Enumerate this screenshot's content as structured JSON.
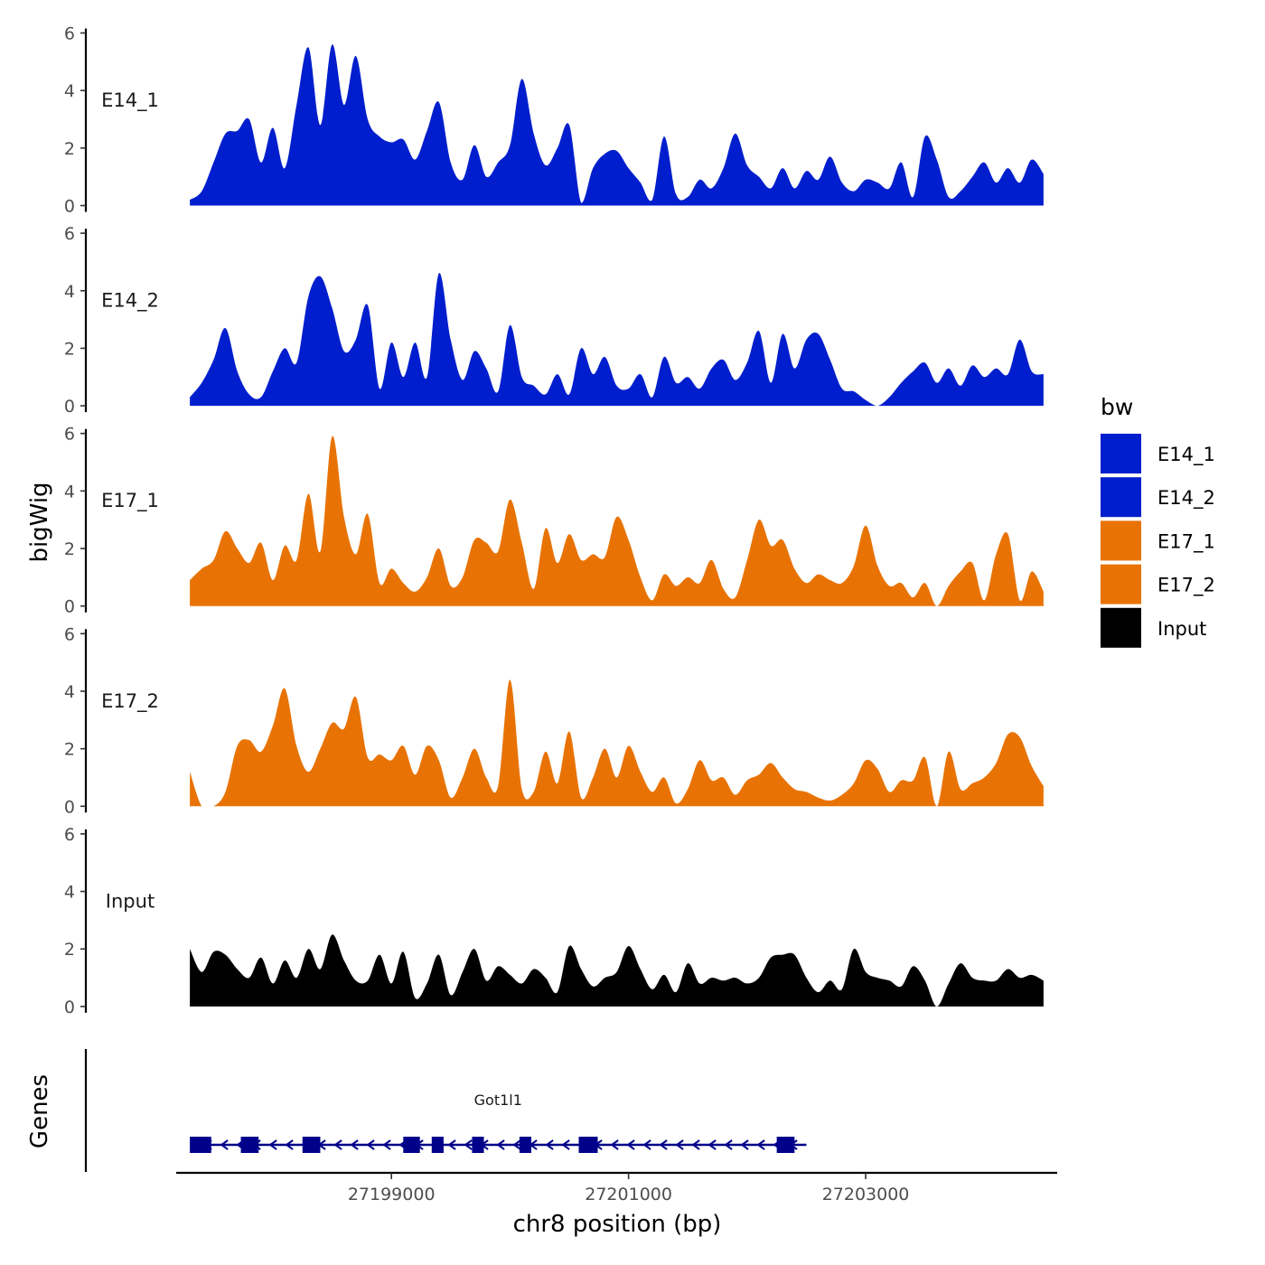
{
  "chart_data": {
    "type": "area",
    "title": "",
    "ylabel": "bigWig",
    "xlabel": "chr8 position (bp)",
    "genes_label": "Genes",
    "gene_name": "Got1l1",
    "xlim": [
      27197200,
      27204600
    ],
    "ylim": [
      0,
      6
    ],
    "y_ticks": [
      "0",
      "2",
      "4",
      "6"
    ],
    "x_ticks": [
      {
        "value": 27199000,
        "label": "27199000"
      },
      {
        "value": 27201000,
        "label": "27201000"
      },
      {
        "value": 27203000,
        "label": "27203000"
      }
    ],
    "legend": {
      "title": "bw",
      "entries": [
        "E14_1",
        "E14_2",
        "E17_1",
        "E17_2",
        "Input"
      ]
    },
    "colors": {
      "E14_1": "#001ECD",
      "E14_2": "#001ECD",
      "E17_1": "#E87304",
      "E17_2": "#E87304",
      "Input": "#000000",
      "gene": "#00008B"
    },
    "x": [
      27197300,
      27197400,
      27197500,
      27197600,
      27197700,
      27197800,
      27197900,
      27198000,
      27198100,
      27198200,
      27198300,
      27198400,
      27198500,
      27198600,
      27198700,
      27198800,
      27198900,
      27199000,
      27199100,
      27199200,
      27199300,
      27199400,
      27199500,
      27199600,
      27199700,
      27199800,
      27199900,
      27200000,
      27200100,
      27200200,
      27200300,
      27200400,
      27200500,
      27200600,
      27200700,
      27200800,
      27200900,
      27201000,
      27201100,
      27201200,
      27201300,
      27201400,
      27201500,
      27201600,
      27201700,
      27201800,
      27201900,
      27202000,
      27202100,
      27202200,
      27202300,
      27202400,
      27202500,
      27202600,
      27202700,
      27202800,
      27202900,
      27203000,
      27203100,
      27203200,
      27203300,
      27203400,
      27203500,
      27203600,
      27203700,
      27203800,
      27203900,
      27204000,
      27204100,
      27204200,
      27204300,
      27204400,
      27204500
    ],
    "series": [
      {
        "name": "E14_1",
        "values": [
          0.2,
          0.5,
          1.5,
          2.5,
          2.6,
          3.0,
          1.5,
          2.7,
          1.3,
          3.5,
          5.5,
          2.8,
          5.6,
          3.5,
          5.2,
          3.0,
          2.4,
          2.2,
          2.3,
          1.6,
          2.6,
          3.6,
          1.5,
          0.9,
          2.1,
          1.0,
          1.5,
          2.1,
          4.4,
          2.5,
          1.4,
          2.0,
          2.8,
          0.1,
          1.3,
          1.8,
          1.9,
          1.3,
          0.8,
          0.2,
          2.4,
          0.4,
          0.3,
          0.9,
          0.6,
          1.3,
          2.5,
          1.4,
          1.0,
          0.6,
          1.3,
          0.6,
          1.2,
          0.9,
          1.7,
          0.8,
          0.5,
          0.9,
          0.8,
          0.6,
          1.5,
          0.3,
          2.4,
          1.6,
          0.3,
          0.5,
          1.0,
          1.5,
          0.8,
          1.3,
          0.8,
          1.6,
          1.1
        ]
      },
      {
        "name": "E14_2",
        "values": [
          0.3,
          0.8,
          1.6,
          2.7,
          1.2,
          0.4,
          0.3,
          1.2,
          2.0,
          1.5,
          3.8,
          4.5,
          3.4,
          1.9,
          2.3,
          3.5,
          0.6,
          2.2,
          1.0,
          2.2,
          1.0,
          4.6,
          2.3,
          0.9,
          1.9,
          1.3,
          0.5,
          2.8,
          1.0,
          0.7,
          0.4,
          1.1,
          0.4,
          2.0,
          1.1,
          1.7,
          0.7,
          0.6,
          1.1,
          0.3,
          1.7,
          0.8,
          1.0,
          0.6,
          1.3,
          1.6,
          0.9,
          1.5,
          2.6,
          0.8,
          2.5,
          1.3,
          2.3,
          2.5,
          1.6,
          0.6,
          0.5,
          0.2,
          0.0,
          0.3,
          0.8,
          1.2,
          1.5,
          0.8,
          1.3,
          0.7,
          1.4,
          1.0,
          1.3,
          1.1,
          2.3,
          1.2,
          1.1
        ]
      },
      {
        "name": "E17_1",
        "values": [
          0.9,
          1.3,
          1.6,
          2.6,
          2.0,
          1.5,
          2.2,
          0.9,
          2.1,
          1.6,
          3.9,
          1.9,
          5.9,
          3.1,
          1.8,
          3.2,
          0.8,
          1.3,
          0.8,
          0.5,
          1.0,
          2.0,
          0.7,
          1.0,
          2.3,
          2.2,
          1.9,
          3.7,
          2.2,
          0.6,
          2.7,
          1.5,
          2.5,
          1.6,
          1.8,
          1.7,
          3.1,
          2.3,
          1.0,
          0.2,
          1.1,
          0.7,
          1.0,
          0.8,
          1.6,
          0.6,
          0.3,
          1.6,
          3.0,
          2.1,
          2.3,
          1.3,
          0.8,
          1.1,
          0.9,
          0.8,
          1.4,
          2.8,
          1.4,
          0.7,
          0.8,
          0.3,
          0.8,
          0.0,
          0.7,
          1.2,
          1.5,
          0.2,
          1.8,
          2.5,
          0.2,
          1.2,
          0.5
        ]
      },
      {
        "name": "E17_2",
        "values": [
          1.2,
          0.0,
          0.0,
          0.5,
          2.1,
          2.3,
          1.9,
          2.8,
          4.1,
          2.1,
          1.2,
          2.0,
          2.9,
          2.7,
          3.8,
          1.7,
          1.8,
          1.6,
          2.1,
          1.1,
          2.1,
          1.6,
          0.3,
          1.0,
          2.0,
          1.0,
          0.7,
          4.4,
          0.6,
          0.5,
          1.9,
          0.8,
          2.6,
          0.3,
          1.0,
          2.0,
          1.0,
          2.1,
          1.2,
          0.5,
          1.0,
          0.1,
          0.6,
          1.6,
          0.9,
          1.0,
          0.4,
          0.9,
          1.1,
          1.5,
          1.0,
          0.6,
          0.5,
          0.3,
          0.2,
          0.4,
          0.8,
          1.6,
          1.3,
          0.5,
          0.9,
          0.9,
          1.7,
          0.0,
          1.9,
          0.6,
          0.8,
          1.0,
          1.5,
          2.5,
          2.4,
          1.4,
          0.7
        ]
      },
      {
        "name": "Input",
        "values": [
          2.0,
          1.2,
          1.9,
          1.8,
          1.3,
          1.0,
          1.7,
          0.8,
          1.6,
          1.0,
          2.0,
          1.3,
          2.5,
          1.6,
          0.9,
          0.9,
          1.8,
          0.8,
          1.9,
          0.3,
          0.8,
          1.8,
          0.4,
          1.2,
          2.0,
          0.9,
          1.4,
          1.1,
          0.8,
          1.3,
          1.0,
          0.5,
          2.1,
          1.3,
          0.7,
          1.0,
          1.2,
          2.1,
          1.3,
          0.6,
          1.1,
          0.5,
          1.5,
          0.8,
          1.0,
          0.9,
          1.0,
          0.8,
          1.0,
          1.7,
          1.8,
          1.8,
          1.0,
          0.5,
          0.9,
          0.6,
          2.0,
          1.2,
          1.0,
          0.9,
          0.7,
          1.4,
          0.9,
          0.0,
          0.8,
          1.5,
          1.0,
          0.9,
          0.9,
          1.3,
          1.0,
          1.1,
          0.9
        ]
      }
    ],
    "gene": {
      "name": "Got1l1",
      "start": 27197300,
      "end": 27202500,
      "strand": "-",
      "exons": [
        [
          27197300,
          27197480
        ],
        [
          27197730,
          27197880
        ],
        [
          27198250,
          27198400
        ],
        [
          27199100,
          27199240
        ],
        [
          27199340,
          27199440
        ],
        [
          27199680,
          27199780
        ],
        [
          27200080,
          27200180
        ],
        [
          27200580,
          27200740
        ],
        [
          27202250,
          27202400
        ]
      ]
    }
  }
}
